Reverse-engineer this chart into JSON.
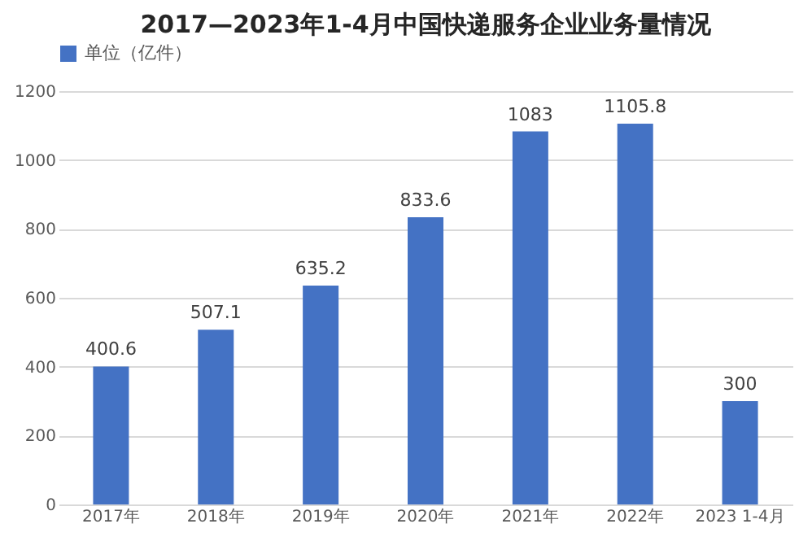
{
  "chart_data": {
    "type": "bar",
    "title": "2017—2023年1-4月中国快递服务企业业务量情况",
    "categories": [
      "2017年",
      "2018年",
      "2019年",
      "2020年",
      "2021年",
      "2022年",
      "2023 1-4月"
    ],
    "series": [
      {
        "name": "单位（亿件）",
        "color": "#4472c4",
        "values": [
          400.6,
          507.1,
          635.2,
          833.6,
          1083,
          1105.8,
          300
        ]
      }
    ],
    "ylim": [
      0,
      1200
    ],
    "yticks": [
      0,
      200,
      400,
      600,
      800,
      1000,
      1200
    ],
    "grid": "y",
    "legend": "top",
    "data_labels": true
  }
}
